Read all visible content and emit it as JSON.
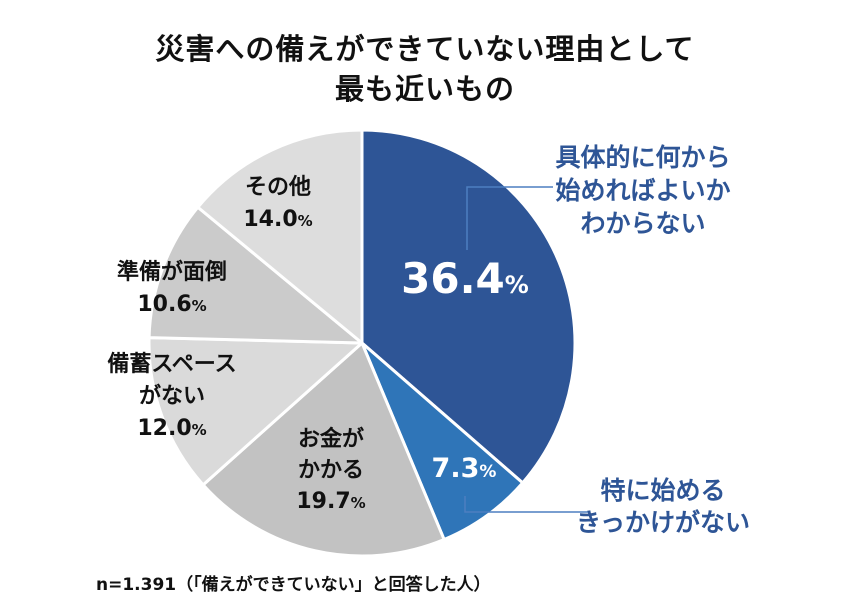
{
  "title": [
    "災害への備えができていない理由として",
    "最も近いもの"
  ],
  "note": "n=1.391（「備えができていない」と回答した人）",
  "unit": "%",
  "colors": {
    "dark_blue": "#2e5596",
    "mid_blue": "#2f75b8",
    "gray_1": "#c2c2c2",
    "gray_2": "#dadada",
    "gray_3": "#cbcbcb",
    "gray_4": "#dddddd",
    "label_blue": "#2e5596",
    "leader_blue": "#4d7fc0"
  },
  "chart_data": {
    "type": "pie",
    "title": "災害への備えができていない理由として最も近いもの",
    "start_angle_deg": 0,
    "direction": "clockwise",
    "slices": [
      {
        "label_lines": [
          "具体的に何から",
          "始めればよいか",
          "わからない"
        ],
        "value": 36.4,
        "value_text": "36.4",
        "color": "dark_blue",
        "value_color": "#ffffff",
        "label_color": "label_blue",
        "callout": true
      },
      {
        "label_lines": [
          "特に始める",
          "きっかけがない"
        ],
        "value": 7.3,
        "value_text": "7.3",
        "color": "mid_blue",
        "value_color": "#ffffff",
        "label_color": "label_blue",
        "callout": true
      },
      {
        "label_lines": [
          "お金が",
          "かかる"
        ],
        "value": 19.7,
        "value_text": "19.7",
        "color": "gray_1",
        "value_color": "#111111",
        "label_color": "#111111",
        "callout": false
      },
      {
        "label_lines": [
          "備蓄スペース",
          "がない"
        ],
        "value": 12.0,
        "value_text": "12.0",
        "color": "gray_2",
        "value_color": "#111111",
        "label_color": "#111111",
        "callout": false
      },
      {
        "label_lines": [
          "準備が面倒"
        ],
        "value": 10.6,
        "value_text": "10.6",
        "color": "gray_3",
        "value_color": "#111111",
        "label_color": "#111111",
        "callout": false
      },
      {
        "label_lines": [
          "その他"
        ],
        "value": 14.0,
        "value_text": "14.0",
        "color": "gray_4",
        "value_color": "#111111",
        "label_color": "#111111",
        "callout": false
      }
    ]
  }
}
